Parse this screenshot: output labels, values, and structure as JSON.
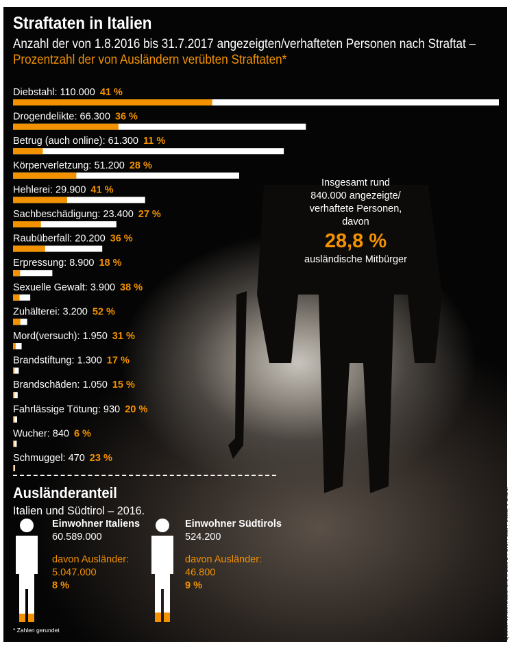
{
  "title": "Straftaten in Italien",
  "subtitle_line1": "Anzahl der von 1.8.2016 bis 31.7.2017 angezeigten/verhafteten Personen nach Straftat –",
  "subtitle_line2": "Prozentzahl der von Ausländern verübten Straftaten*",
  "colors": {
    "accent": "#f39200",
    "bar_total": "#ffffff",
    "background": "#050505"
  },
  "chart_data": {
    "type": "bar",
    "orientation": "horizontal",
    "categories": [
      "Diebstahl",
      "Drogendelikte",
      "Betrug (auch online)",
      "Körperverletzung",
      "Hehlerei",
      "Sachbeschädigung",
      "Raubüberfall",
      "Erpressung",
      "Sexuelle Gewalt",
      "Zuhälterei",
      "Mord(versuch)",
      "Brandstiftung",
      "Brandschäden",
      "Fahrlässige Tötung",
      "Wucher",
      "Schmuggel"
    ],
    "value_labels": [
      "110.000",
      "66.300",
      "61.300",
      "51.200",
      "29.900",
      "23.400",
      "20.200",
      "8.900",
      "3.900",
      "3.200",
      "1.950",
      "1.300",
      "1.050",
      "930",
      "840",
      "470"
    ],
    "percent_labels": [
      "41 %",
      "36 %",
      "11 %",
      "28 %",
      "41 %",
      "27 %",
      "36 %",
      "18 %",
      "38 %",
      "52 %",
      "31 %",
      "17 %",
      "15 %",
      "20 %",
      "6 %",
      "23 %"
    ],
    "series": [
      {
        "values": [
          110000,
          66300,
          61300,
          51200,
          29900,
          23400,
          20200,
          8900,
          3900,
          3200,
          1950,
          1300,
          1050,
          930,
          840,
          470
        ]
      },
      {
        "values": [
          41,
          36,
          11,
          28,
          41,
          27,
          36,
          18,
          38,
          52,
          31,
          17,
          15,
          20,
          6,
          23
        ]
      }
    ],
    "xlim": [
      0,
      110000
    ]
  },
  "total": {
    "line1": "Insgesamt rund",
    "line2": "840.000 angezeigte/",
    "line3": "verhaftete Personen,",
    "line4": "davon",
    "percent": "28,8 %",
    "line5": "ausländische Mitbürger"
  },
  "section": {
    "title": "Ausländeranteil",
    "subtitle": "Italien und Südtirol – 2016."
  },
  "italy": {
    "heading": "Einwohner Italiens",
    "population": "60.589.000",
    "foreign_label": "davon Ausländer:",
    "foreign_count": "5.047.000",
    "percent": "8 %",
    "foreign_share": 0.08
  },
  "suedtirol": {
    "heading": "Einwohner Südtirols",
    "population": "524.200",
    "foreign_label": "davon Ausländer:",
    "foreign_count": "46.800",
    "percent": "9 %",
    "foreign_share": 0.09
  },
  "footnote": "* Zahlen gerundet",
  "source": "Quelle: Innenministerium, Il Sole 24 Ore; Foto: Pexels; ff-Grafik"
}
